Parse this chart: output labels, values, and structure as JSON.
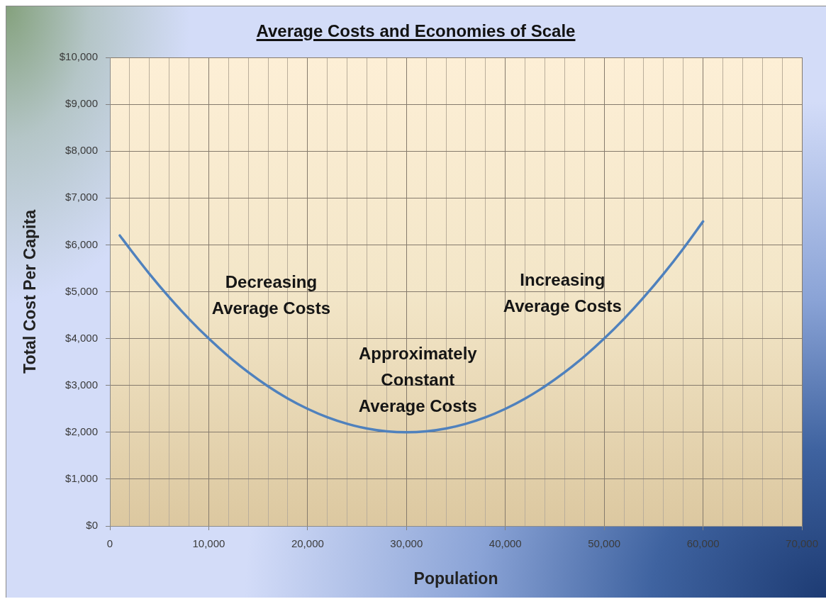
{
  "chart_data": {
    "type": "line",
    "title": "Average Costs and Economies of Scale",
    "xlabel": "Population",
    "ylabel": "Total Cost Per Capita",
    "x": [
      1000,
      2000,
      4000,
      6000,
      8000,
      10000,
      12000,
      14000,
      16000,
      18000,
      20000,
      22000,
      24000,
      26000,
      28000,
      30000,
      32000,
      34000,
      36000,
      38000,
      40000,
      42000,
      44000,
      46000,
      48000,
      50000,
      52000,
      54000,
      56000,
      58000,
      60000
    ],
    "series": [
      {
        "color": "#4f81bd",
        "values": [
          6200,
          5920,
          5380,
          4880,
          4420,
          4000,
          3620,
          3280,
          2980,
          2720,
          2500,
          2320,
          2180,
          2080,
          2020,
          2000,
          2020,
          2080,
          2180,
          2320,
          2500,
          2720,
          2980,
          3280,
          3620,
          4000,
          4420,
          4880,
          5380,
          5920,
          6500
        ]
      }
    ],
    "xlim": [
      0,
      70000
    ],
    "ylim": [
      0,
      10000
    ],
    "xticks": [
      0,
      {
        "value": 2000,
        "label": null
      },
      {
        "value": 4000,
        "label": null
      },
      {
        "value": 6000,
        "label": null
      },
      {
        "value": 8000,
        "label": null
      },
      {
        "value": 10000,
        "label": "10,000"
      },
      {
        "value": 12000,
        "label": null
      },
      {
        "value": 14000,
        "label": null
      },
      {
        "value": 16000,
        "label": null
      },
      {
        "value": 18000,
        "label": null
      },
      {
        "value": 20000,
        "label": "20,000"
      },
      {
        "value": 22000,
        "label": null
      },
      {
        "value": 24000,
        "label": null
      },
      {
        "value": 26000,
        "label": null
      },
      {
        "value": 28000,
        "label": null
      },
      {
        "value": 30000,
        "label": "30,000"
      },
      {
        "value": 32000,
        "label": null
      },
      {
        "value": 34000,
        "label": null
      },
      {
        "value": 36000,
        "label": null
      },
      {
        "value": 38000,
        "label": null
      },
      {
        "value": 40000,
        "label": "40,000"
      },
      {
        "value": 42000,
        "label": null
      },
      {
        "value": 44000,
        "label": null
      },
      {
        "value": 46000,
        "label": null
      },
      {
        "value": 48000,
        "label": null
      },
      {
        "value": 50000,
        "label": "50,000"
      },
      {
        "value": 52000,
        "label": null
      },
      {
        "value": 54000,
        "label": null
      },
      {
        "value": 56000,
        "label": null
      },
      {
        "value": 58000,
        "label": null
      },
      {
        "value": 60000,
        "label": "60,000"
      },
      {
        "value": 62000,
        "label": null
      },
      {
        "value": 64000,
        "label": null
      },
      {
        "value": 66000,
        "label": null
      },
      {
        "value": 68000,
        "label": null
      },
      {
        "value": 70000,
        "label": "70,000"
      }
    ],
    "yticks": [
      {
        "value": 0,
        "label": "$0"
      },
      {
        "value": 1000,
        "label": "$1,000"
      },
      {
        "value": 2000,
        "label": "$2,000"
      },
      {
        "value": 3000,
        "label": "$3,000"
      },
      {
        "value": 4000,
        "label": "$4,000"
      },
      {
        "value": 5000,
        "label": "$5,000"
      },
      {
        "value": 6000,
        "label": "$6,000"
      },
      {
        "value": 7000,
        "label": "$7,000"
      },
      {
        "value": 8000,
        "label": "$8,000"
      },
      {
        "value": 9000,
        "label": "$9,000"
      },
      {
        "value": 10000,
        "label": "$10,000"
      }
    ],
    "grid": true,
    "marker": "none",
    "line_style": "solid",
    "annotations": [
      "Decreasing\nAverage Costs",
      "Approximately\nConstant\nAverage Costs",
      "Increasing\nAverage Costs"
    ]
  }
}
